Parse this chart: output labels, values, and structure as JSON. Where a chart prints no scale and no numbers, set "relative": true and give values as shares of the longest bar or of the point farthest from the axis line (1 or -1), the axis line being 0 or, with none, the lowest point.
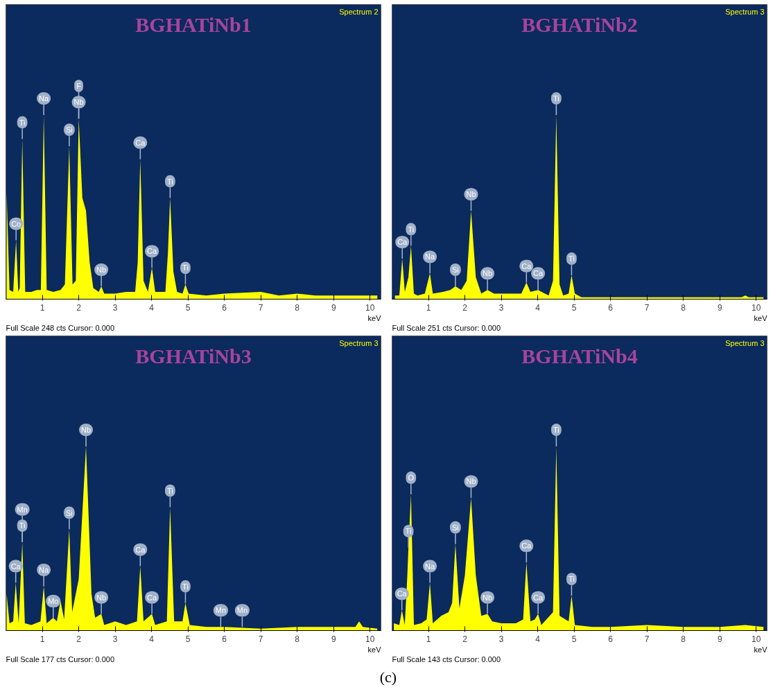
{
  "chart_data": [
    {
      "type": "area",
      "title": "BGHATiNb1",
      "xlabel": "keV",
      "relative": true,
      "tick_labels": "x",
      "xlim": [
        0,
        10.3
      ],
      "xticks": [
        1,
        2,
        3,
        4,
        5,
        6,
        7,
        8,
        9,
        10
      ],
      "series": [
        {
          "color": "#ffff00",
          "x": [
            0.02,
            0.1,
            0.2,
            0.28,
            0.34,
            0.38,
            0.45,
            0.53,
            0.7,
            0.85,
            0.96,
            1.04,
            1.12,
            1.3,
            1.5,
            1.62,
            1.74,
            1.83,
            1.92,
            2.0,
            2.1,
            2.2,
            2.3,
            2.4,
            2.55,
            2.62,
            2.7,
            3.0,
            3.3,
            3.55,
            3.62,
            3.69,
            3.78,
            3.9,
            4.01,
            4.1,
            4.38,
            4.45,
            4.51,
            4.6,
            4.7,
            4.85,
            4.93,
            5.02,
            5.5,
            6.0,
            7.0,
            7.5,
            8.0,
            8.5,
            9.0,
            9.5,
            10.2
          ],
          "values": [
            0.58,
            0.05,
            0.04,
            0.32,
            0.04,
            0.06,
            0.87,
            0.04,
            0.04,
            0.05,
            0.05,
            1.0,
            0.05,
            0.04,
            0.05,
            0.08,
            0.83,
            0.08,
            0.1,
            0.98,
            0.55,
            0.48,
            0.2,
            0.06,
            0.04,
            0.07,
            0.03,
            0.03,
            0.04,
            0.04,
            0.2,
            0.76,
            0.1,
            0.04,
            0.17,
            0.04,
            0.04,
            0.25,
            0.55,
            0.15,
            0.04,
            0.03,
            0.08,
            0.03,
            0.02,
            0.03,
            0.04,
            0.02,
            0.03,
            0.02,
            0.02,
            0.02,
            0.02
          ]
        }
      ],
      "annotations": [
        "Spectrum 2",
        "Full Scale 248 cts Cursor: 0.000",
        {
          "text": "Co",
          "x": 0.28,
          "y": 0.32
        },
        {
          "text": "Ti",
          "x": 0.45,
          "y": 0.87
        },
        {
          "text": "Na",
          "x": 1.04,
          "y": 1.0
        },
        {
          "text": "Si",
          "x": 1.74,
          "y": 0.83
        },
        {
          "text": "Nb",
          "x": 2.0,
          "y": 0.98
        },
        {
          "text": "F",
          "x": 2.0,
          "y": 0.98
        },
        {
          "text": "Nb",
          "x": 2.62,
          "y": 0.07
        },
        {
          "text": "Ca",
          "x": 3.69,
          "y": 0.76
        },
        {
          "text": "Ca",
          "x": 4.01,
          "y": 0.17
        },
        {
          "text": "Ti",
          "x": 4.51,
          "y": 0.55
        },
        {
          "text": "Ti",
          "x": 4.93,
          "y": 0.08
        }
      ]
    },
    {
      "type": "area",
      "title": "BGHATiNb2",
      "xlabel": "keV",
      "relative": true,
      "tick_labels": "x",
      "xlim": [
        0,
        10.3
      ],
      "xticks": [
        1,
        2,
        3,
        4,
        5,
        6,
        7,
        8,
        9,
        10
      ],
      "series": [
        {
          "color": "#ffff00",
          "x": [
            0.08,
            0.2,
            0.28,
            0.35,
            0.45,
            0.52,
            0.6,
            0.7,
            0.9,
            1.04,
            1.12,
            1.4,
            1.6,
            1.74,
            1.9,
            2.05,
            2.17,
            2.3,
            2.45,
            2.62,
            2.8,
            3.2,
            3.55,
            3.69,
            3.8,
            4.01,
            4.3,
            4.42,
            4.51,
            4.6,
            4.7,
            4.85,
            4.93,
            5.02,
            5.2,
            6.0,
            7.0,
            8.0,
            9.0,
            9.6,
            9.7,
            9.8,
            10.2
          ],
          "values": [
            0.02,
            0.02,
            0.22,
            0.04,
            0.12,
            0.29,
            0.03,
            0.02,
            0.03,
            0.14,
            0.03,
            0.04,
            0.05,
            0.07,
            0.05,
            0.1,
            0.48,
            0.12,
            0.03,
            0.05,
            0.03,
            0.03,
            0.03,
            0.09,
            0.04,
            0.05,
            0.02,
            0.1,
            1.0,
            0.08,
            0.02,
            0.03,
            0.13,
            0.03,
            0.01,
            0.01,
            0.01,
            0.01,
            0.01,
            0.01,
            0.02,
            0.01,
            0.01
          ]
        }
      ],
      "annotations": [
        "Spectrum 3",
        "Full Scale 251 cts Cursor: 0.000",
        {
          "text": "Ca",
          "x": 0.28,
          "y": 0.22
        },
        {
          "text": "Ti",
          "x": 0.52,
          "y": 0.29
        },
        {
          "text": "Na",
          "x": 1.04,
          "y": 0.14
        },
        {
          "text": "Si",
          "x": 1.74,
          "y": 0.07
        },
        {
          "text": "Nb",
          "x": 2.17,
          "y": 0.48
        },
        {
          "text": "Nb",
          "x": 2.62,
          "y": 0.05
        },
        {
          "text": "Ca",
          "x": 3.69,
          "y": 0.09
        },
        {
          "text": "Ca",
          "x": 4.01,
          "y": 0.05
        },
        {
          "text": "Ti",
          "x": 4.51,
          "y": 1.0
        },
        {
          "text": "Ti",
          "x": 4.93,
          "y": 0.13
        }
      ]
    },
    {
      "type": "area",
      "title": "BGHATiNb3",
      "xlabel": "keV",
      "relative": true,
      "tick_labels": "x",
      "xlim": [
        0,
        10.3
      ],
      "xticks": [
        1,
        2,
        3,
        4,
        5,
        6,
        7,
        8,
        9,
        10
      ],
      "series": [
        {
          "color": "#ffff00",
          "x": [
            0.02,
            0.1,
            0.2,
            0.27,
            0.35,
            0.45,
            0.52,
            0.7,
            0.95,
            1.04,
            1.12,
            1.3,
            1.4,
            1.5,
            1.6,
            1.74,
            1.82,
            1.9,
            2.0,
            2.2,
            2.35,
            2.45,
            2.62,
            2.7,
            3.0,
            3.3,
            3.6,
            3.69,
            3.78,
            4.01,
            4.1,
            4.42,
            4.51,
            4.62,
            4.85,
            4.93,
            5.05,
            5.5,
            6.0,
            7.0,
            8.0,
            9.0,
            9.6,
            9.7,
            9.8,
            10.2
          ],
          "values": [
            0.2,
            0.04,
            0.05,
            0.26,
            0.04,
            0.48,
            0.04,
            0.03,
            0.05,
            0.24,
            0.04,
            0.07,
            0.05,
            0.16,
            0.06,
            0.55,
            0.1,
            0.18,
            0.28,
            1.0,
            0.2,
            0.07,
            0.09,
            0.03,
            0.05,
            0.03,
            0.05,
            0.35,
            0.05,
            0.09,
            0.03,
            0.05,
            0.67,
            0.05,
            0.05,
            0.15,
            0.03,
            0.02,
            0.02,
            0.01,
            0.02,
            0.02,
            0.02,
            0.05,
            0.02,
            0.01
          ]
        }
      ],
      "annotations": [
        "Spectrum 3",
        "Full Scale 177 cts Cursor: 0.000",
        {
          "text": "Ca",
          "x": 0.27,
          "y": 0.26
        },
        {
          "text": "Ti",
          "x": 0.45,
          "y": 0.48
        },
        {
          "text": "Mn",
          "x": 0.45,
          "y": 0.48
        },
        {
          "text": "Na",
          "x": 1.04,
          "y": 0.24
        },
        {
          "text": "Mo",
          "x": 1.3,
          "y": 0.07
        },
        {
          "text": "Si",
          "x": 1.74,
          "y": 0.55
        },
        {
          "text": "Nb",
          "x": 2.2,
          "y": 1.0
        },
        {
          "text": "Nb",
          "x": 2.62,
          "y": 0.09
        },
        {
          "text": "Ca",
          "x": 3.69,
          "y": 0.35
        },
        {
          "text": "Ca",
          "x": 4.01,
          "y": 0.09
        },
        {
          "text": "Ti",
          "x": 4.51,
          "y": 0.67
        },
        {
          "text": "Ti",
          "x": 4.93,
          "y": 0.15
        },
        {
          "text": "Mn",
          "x": 5.9,
          "y": 0.02
        },
        {
          "text": "Mn",
          "x": 6.49,
          "y": 0.02
        }
      ]
    },
    {
      "type": "area",
      "title": "BGHATiNb4",
      "xlabel": "keV",
      "relative": true,
      "tick_labels": "x",
      "xlim": [
        0,
        10.3
      ],
      "xticks": [
        1,
        2,
        3,
        4,
        5,
        6,
        7,
        8,
        9,
        10
      ],
      "series": [
        {
          "color": "#ffff00",
          "x": [
            0.05,
            0.2,
            0.27,
            0.35,
            0.42,
            0.45,
            0.52,
            0.6,
            0.8,
            0.95,
            1.04,
            1.12,
            1.35,
            1.55,
            1.65,
            1.74,
            1.85,
            2.0,
            2.17,
            2.3,
            2.45,
            2.62,
            2.75,
            3.0,
            3.4,
            3.6,
            3.69,
            3.8,
            3.92,
            4.01,
            4.1,
            4.42,
            4.51,
            4.6,
            4.85,
            4.93,
            5.02,
            5.5,
            6.0,
            7.0,
            8.0,
            9.0,
            9.7,
            10.2
          ],
          "values": [
            0.04,
            0.03,
            0.11,
            0.03,
            0.3,
            0.45,
            0.74,
            0.03,
            0.04,
            0.06,
            0.26,
            0.04,
            0.08,
            0.1,
            0.15,
            0.47,
            0.12,
            0.3,
            0.72,
            0.3,
            0.08,
            0.09,
            0.05,
            0.04,
            0.04,
            0.06,
            0.37,
            0.05,
            0.06,
            0.09,
            0.03,
            0.1,
            1.0,
            0.08,
            0.05,
            0.19,
            0.03,
            0.02,
            0.02,
            0.03,
            0.02,
            0.02,
            0.03,
            0.02
          ]
        }
      ],
      "annotations": [
        "Spectrum 3",
        "Full Scale 143 cts Cursor: 0.000",
        "(c)",
        {
          "text": "Ca",
          "x": 0.27,
          "y": 0.11
        },
        {
          "text": "Ti",
          "x": 0.45,
          "y": 0.45
        },
        {
          "text": "O",
          "x": 0.52,
          "y": 0.74
        },
        {
          "text": "Na",
          "x": 1.04,
          "y": 0.26
        },
        {
          "text": "Si",
          "x": 1.74,
          "y": 0.47
        },
        {
          "text": "Nb",
          "x": 2.17,
          "y": 0.72
        },
        {
          "text": "Nb",
          "x": 2.62,
          "y": 0.09
        },
        {
          "text": "Ca",
          "x": 3.69,
          "y": 0.37
        },
        {
          "text": "Ca",
          "x": 4.01,
          "y": 0.09
        },
        {
          "text": "Ti",
          "x": 4.51,
          "y": 1.0
        },
        {
          "text": "Ti",
          "x": 4.93,
          "y": 0.19
        }
      ]
    }
  ]
}
